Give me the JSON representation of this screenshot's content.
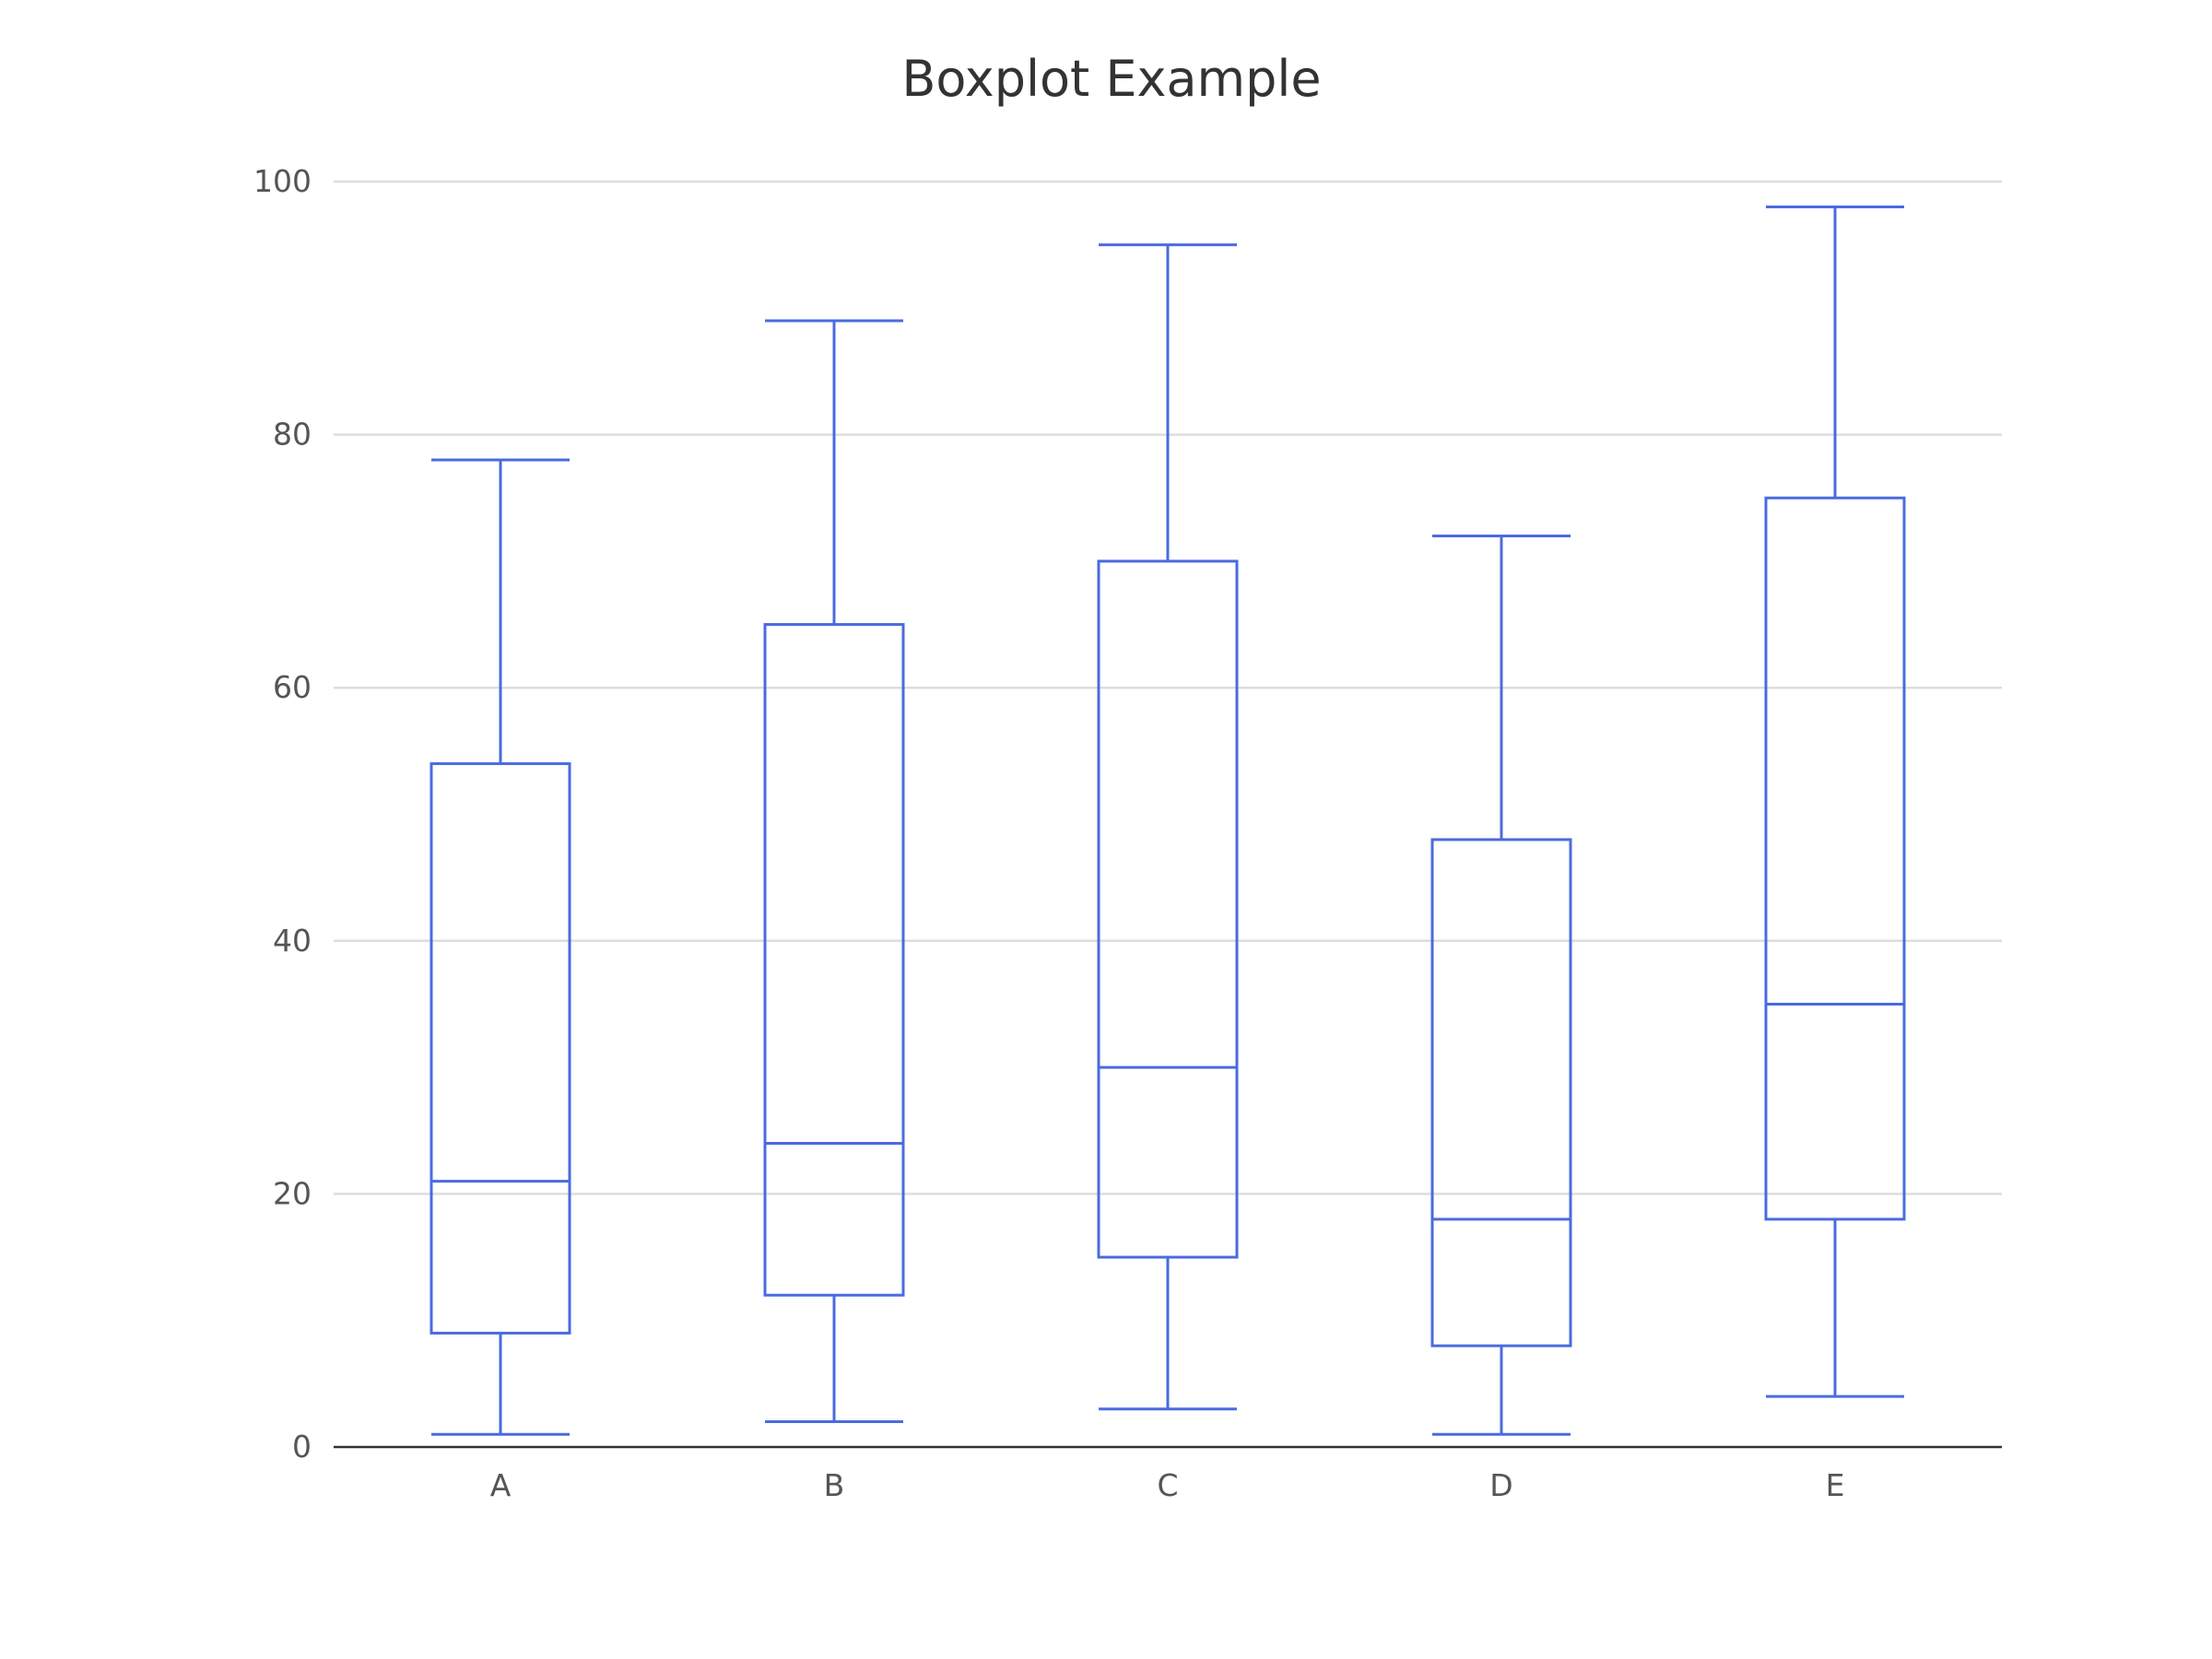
{
  "chart_data": {
    "type": "boxplot",
    "title": "Boxplot Example",
    "xlabel": "",
    "ylabel": "",
    "ylim": [
      0,
      100
    ],
    "yticks": [
      0,
      20,
      40,
      60,
      80,
      100
    ],
    "grid": true,
    "color": "#4a6bdf",
    "categories": [
      "A",
      "B",
      "C",
      "D",
      "E"
    ],
    "boxes": [
      {
        "category": "A",
        "min": 1,
        "q1": 9,
        "median": 21,
        "q3": 54,
        "max": 78
      },
      {
        "category": "B",
        "min": 2,
        "q1": 12,
        "median": 24,
        "q3": 65,
        "max": 89
      },
      {
        "category": "C",
        "min": 3,
        "q1": 15,
        "median": 30,
        "q3": 70,
        "max": 95
      },
      {
        "category": "D",
        "min": 1,
        "q1": 8,
        "median": 18,
        "q3": 48,
        "max": 72
      },
      {
        "category": "E",
        "min": 4,
        "q1": 18,
        "median": 35,
        "q3": 75,
        "max": 98
      }
    ]
  }
}
